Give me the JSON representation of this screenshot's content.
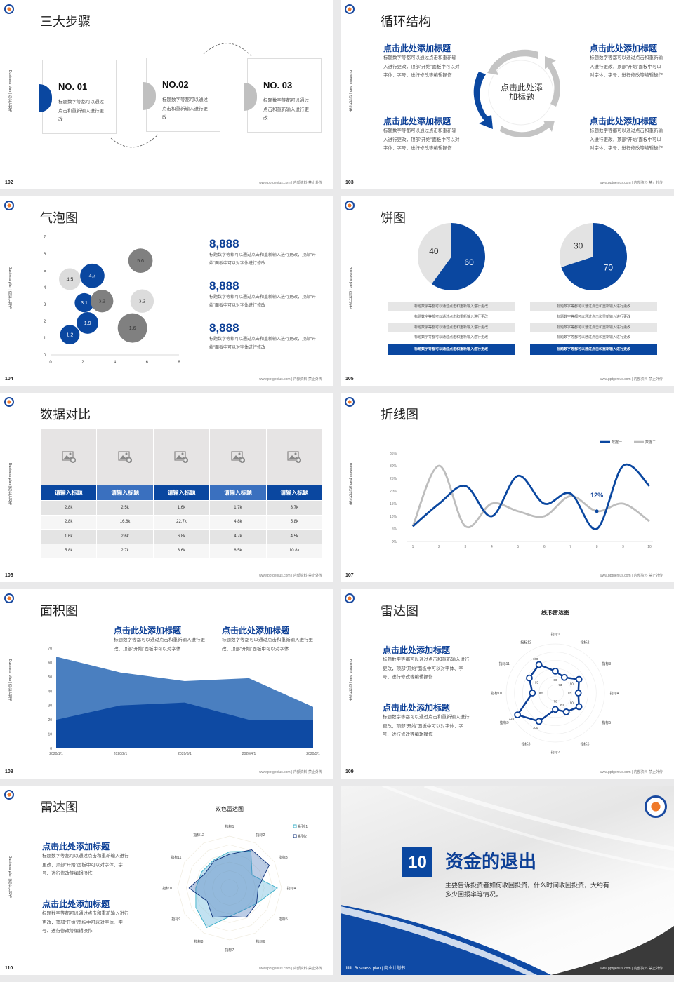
{
  "common": {
    "side_label": "Business plan | 商业计划书",
    "footer": "www.pptgenius.com | 内部资料 禁止外传",
    "body_text_long": "标题数字等都可以通过点击和重新输入进行更改，顶部“开始”面板中可以对字体、字号、进行修改等编辑操作",
    "colors": {
      "blue": "#0a47a0",
      "light_blue": "#4a7fc0",
      "gray": "#c0c0c0",
      "dark_gray": "#808080",
      "light_gray": "#dcdcdc"
    }
  },
  "slides": [
    {
      "page": "102",
      "title": "三大步骤",
      "steps": [
        {
          "no": "NO. 01",
          "text": "标题数字等都可以通过点击和重新输入进行更改"
        },
        {
          "no": "NO.02",
          "text": "标题数字等都可以通过点击和重新输入进行更改"
        },
        {
          "no": "NO. 03",
          "text": "标题数字等都可以通过点击和重新输入进行更改"
        }
      ]
    },
    {
      "page": "103",
      "title": "循环结构",
      "center": "点击此处添加标题",
      "blocks": [
        {
          "heading": "点击此处添加标题",
          "text": "标题数字等都可以通过点击和重新输入进行更改，顶部“开始”面板中可以对字体、字号、进行修改等编辑操作"
        },
        {
          "heading": "点击此处添加标题",
          "text": "标题数字等都可以通过点击和重新输入进行更改，顶部“开始”面板中可以对字体、字号、进行修改等编辑操作"
        },
        {
          "heading": "点击此处添加标题",
          "text": "标题数字等都可以通过点击和重新输入进行更改，顶部“开始”面板中可以对字体、字号、进行修改等编辑操作"
        },
        {
          "heading": "点击此处添加标题",
          "text": "标题数字等都可以通过点击和重新输入进行更改，顶部“开始”面板中可以对字体、字号、进行修改等编辑操作"
        }
      ]
    },
    {
      "page": "104",
      "title": "气泡图",
      "stats": [
        {
          "value": "8,888",
          "text": "标题数字等都可以通过点击和重新输入进行更改，顶部“开始”面板中可以对字体进行修改"
        },
        {
          "value": "8,888",
          "text": "标题数字等都可以通过点击和重新输入进行更改，顶部“开始”面板中可以对字体进行修改"
        },
        {
          "value": "8,888",
          "text": "标题数字等都可以通过点击和重新输入进行更改，顶部“开始”面板中可以对字体进行修改"
        }
      ]
    },
    {
      "page": "105",
      "title": "饼图",
      "rows_left": [
        "标题数字等都可以通过点击和重新输入进行更改",
        "标题数字等都可以通过点击和重新输入进行更改",
        "标题数字等都可以通过点击和重新输入进行更改",
        "标题数字等都可以通过点击和重新输入进行更改",
        "标题数字等都可以通过点击和重新输入进行更改"
      ],
      "rows_right": [
        "标题数字等都可以通过点击和重新输入进行更改",
        "标题数字等都可以通过点击和重新输入进行更改",
        "标题数字等都可以通过点击和重新输入进行更改",
        "标题数字等都可以通过点击和重新输入进行更改",
        "标题数字等都可以通过点击和重新输入进行更改"
      ]
    },
    {
      "page": "106",
      "title": "数据对比",
      "headers": [
        "请输入标题",
        "请输入标题",
        "请输入标题",
        "请输入标题",
        "请输入标题"
      ],
      "rows": [
        [
          "2.8k",
          "2.5k",
          "1.6k",
          "1.7k",
          "3.7k"
        ],
        [
          "2.8k",
          "16.8k",
          "22.7k",
          "4.8k",
          "5.8k"
        ],
        [
          "1.6k",
          "2.6k",
          "6.8k",
          "4.7k",
          "4.5k"
        ],
        [
          "5.8k",
          "2.7k",
          "3.6k",
          "6.5k",
          "10.8k"
        ]
      ]
    },
    {
      "page": "107",
      "title": "折线图"
    },
    {
      "page": "108",
      "title": "面积图",
      "blocks": [
        {
          "heading": "点击此处添加标题",
          "text": "标题数字等都可以通过点击和重新输入进行更改，顶部“开始”面板中可以对字体"
        },
        {
          "heading": "点击此处添加标题",
          "text": "标题数字等都可以通过点击和重新输入进行更改，顶部“开始”面板中可以对字体"
        }
      ]
    },
    {
      "page": "109",
      "title": "雷达图",
      "blocks": [
        {
          "heading": "点击此处添加标题",
          "text": "标题数字等都可以通过点击和重新输入进行更改，顶部“开始”面板中可以对字体、字号、进行修改等编辑操作"
        },
        {
          "heading": "点击此处添加标题",
          "text": "标题数字等都可以通过点击和重新输入进行更改，顶部“开始”面板中可以对字体、字号、进行修改等编辑操作"
        }
      ]
    },
    {
      "page": "110",
      "title": "雷达图",
      "blocks": [
        {
          "heading": "点击此处添加标题",
          "text": "标题数字等都可以通过点击和重新输入进行更改，顶部“开始”面板中可以对字体、字号、进行修改等编辑操作"
        },
        {
          "heading": "点击此处添加标题",
          "text": "标题数字等都可以通过点击和重新输入进行更改，顶部“开始”面板中可以对字体、字号、进行修改等编辑操作"
        }
      ]
    },
    {
      "page": "111",
      "section_number": "10",
      "title": "资金的退出",
      "description": "主要告诉投资者如何收回投资，什么时间收回投资，大约有多少回报率等情况。",
      "footer_left": "Business plan | 商业计划书"
    }
  ],
  "chart_data": [
    {
      "type": "scatter",
      "variant": "bubble",
      "xlim": [
        0,
        8
      ],
      "ylim": [
        0,
        7
      ],
      "x_ticks": [
        "0",
        "2",
        "4",
        "6",
        "8"
      ],
      "y_ticks": [
        "0",
        "1",
        "2",
        "3",
        "4",
        "5",
        "6",
        "7"
      ],
      "points": [
        {
          "x": 1.2,
          "y": 1.2,
          "size": 1.2,
          "label": "1.2",
          "color": "#0a47a0"
        },
        {
          "x": 2.3,
          "y": 1.9,
          "size": 1.9,
          "label": "1.9",
          "color": "#0a47a0"
        },
        {
          "x": 2.1,
          "y": 3.1,
          "size": 1.1,
          "label": "3.1",
          "color": "#0a47a0"
        },
        {
          "x": 3.2,
          "y": 3.2,
          "size": 2.3,
          "label": "3.2",
          "color": "#808080"
        },
        {
          "x": 1.2,
          "y": 4.5,
          "size": 1.9,
          "label": "4.5",
          "color": "#dcdcdc"
        },
        {
          "x": 2.6,
          "y": 4.7,
          "size": 3.0,
          "label": "4.7",
          "color": "#0a47a0"
        },
        {
          "x": 5.6,
          "y": 5.6,
          "size": 3.0,
          "label": "5.6",
          "color": "#808080"
        },
        {
          "x": 5.7,
          "y": 3.2,
          "size": 2.6,
          "label": "3.2",
          "color": "#dcdcdc"
        },
        {
          "x": 5.1,
          "y": 1.6,
          "size": 5.8,
          "label": "1.6",
          "color": "#808080"
        }
      ]
    },
    {
      "type": "pie",
      "slices": [
        {
          "label": "60",
          "value": 60,
          "color": "#0a47a0"
        },
        {
          "label": "40",
          "value": 40,
          "color": "#e3e3e3"
        }
      ]
    },
    {
      "type": "pie",
      "slices": [
        {
          "label": "70",
          "value": 70,
          "color": "#0a47a0"
        },
        {
          "label": "30",
          "value": 30,
          "color": "#e3e3e3"
        }
      ]
    },
    {
      "type": "line",
      "x": [
        1,
        2,
        3,
        4,
        5,
        6,
        7,
        8,
        9,
        10
      ],
      "ylim": [
        0,
        35
      ],
      "y_ticks": [
        "0%",
        "5%",
        "10%",
        "15%",
        "20%",
        "25%",
        "30%",
        "35%"
      ],
      "series": [
        {
          "name": "数据一",
          "values": [
            6,
            15,
            22,
            10,
            26,
            15,
            19,
            5,
            30,
            22
          ],
          "color": "#0a47a0"
        },
        {
          "name": "数据二",
          "values": [
            6,
            30,
            6,
            15,
            12,
            10,
            18,
            12,
            15,
            8
          ],
          "color": "#bdbdbd"
        }
      ],
      "annotation": {
        "x": 8,
        "y": 12,
        "text": "12%"
      }
    },
    {
      "type": "area",
      "categories": [
        "2020/1/1",
        "2020/2/1",
        "2020/3/1",
        "2020/4/1",
        "2020/5/1"
      ],
      "ylim": [
        0,
        70
      ],
      "y_ticks": [
        "0",
        "10",
        "20",
        "30",
        "40",
        "50",
        "60",
        "70"
      ],
      "series": [
        {
          "values": [
            64,
            53,
            47,
            49,
            29
          ],
          "color": "#4a7fc0"
        },
        {
          "values": [
            20,
            30,
            32,
            20,
            20
          ],
          "color": "#0e4aa3"
        }
      ]
    },
    {
      "type": "radar",
      "title": "线形雷达图",
      "range": [
        40,
        130
      ],
      "axes": [
        "指标1",
        "指标2",
        "指标3",
        "指标4",
        "指标5",
        "指标6",
        "指标7",
        "指标8",
        "指标9",
        "指标10",
        "指标11",
        "指标12"
      ],
      "series": [
        {
          "values": [
            80,
            73,
            90,
            82,
            90,
            80,
            70,
            100,
            120,
            82,
            95,
            100
          ],
          "color": "#0c3f96",
          "labels": [
            "80",
            "73",
            "90",
            "82",
            "90",
            "80",
            "70",
            "100",
            "120",
            "82",
            "95",
            "100"
          ]
        }
      ]
    },
    {
      "type": "radar",
      "title": "双色雷达图",
      "range": [
        0,
        100
      ],
      "axes": [
        "指标1",
        "指标2",
        "指标3",
        "指标4",
        "指标5",
        "指标6",
        "指标7",
        "指标8",
        "指标9",
        "指标10",
        "指标11",
        "指标12"
      ],
      "series": [
        {
          "name": "系列 1",
          "values": [
            70,
            82,
            50,
            92,
            60,
            50,
            55,
            88,
            75,
            65,
            62,
            62
          ],
          "color": "#3bb0c9",
          "fill": "rgba(120,190,225,0.45)"
        },
        {
          "name": "系列2",
          "values": [
            65,
            85,
            88,
            55,
            60,
            65,
            55,
            65,
            50,
            78,
            55,
            60
          ],
          "color": "#0c2f78",
          "fill": "rgba(60,110,180,0.35)"
        }
      ]
    }
  ]
}
